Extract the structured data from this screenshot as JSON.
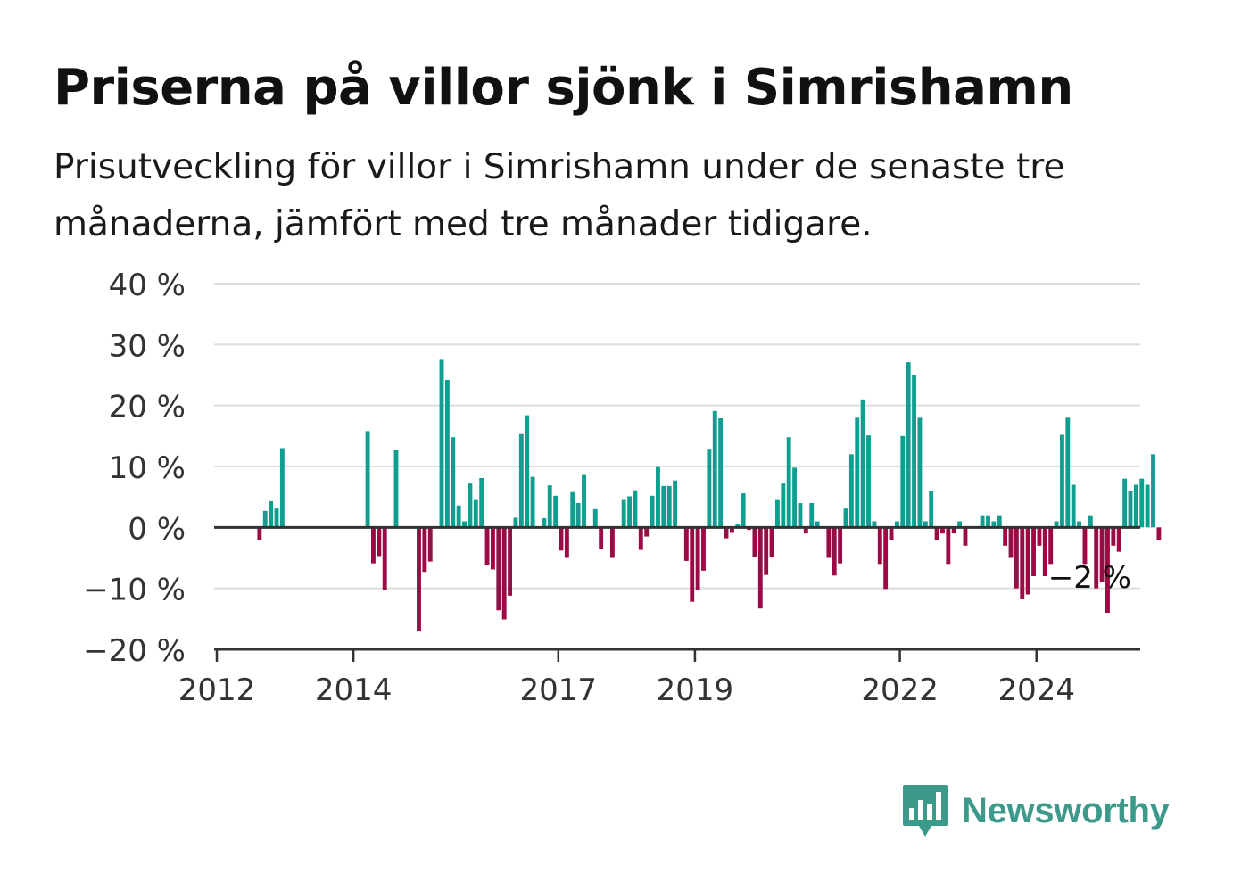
{
  "title": "Priserna på villor sjönk i Simrishamn",
  "subtitle": "Prisutveckling för villor i Simrishamn under de senaste tre månaderna, jämfört med tre månader tidigare.",
  "brand": {
    "name": "Newsworthy",
    "icon": "newsworthy-bar-chart-logo-icon"
  },
  "colors": {
    "positive": "#0f9e90",
    "negative": "#9c0a45",
    "grid": "#dddddd",
    "axis": "#333333",
    "brand": "#3d9a8b"
  },
  "chart_data": {
    "type": "bar",
    "x_unit": "month",
    "x_start": "2012-01",
    "ylim": [
      -20,
      40
    ],
    "y_ticks": [
      -20,
      -10,
      0,
      10,
      20,
      30,
      40
    ],
    "y_tick_labels": [
      "−20 %",
      "−10 %",
      "0 %",
      "10 %",
      "20 %",
      "30 %",
      "40 %"
    ],
    "x_ticks": [
      "2012",
      "2014",
      "2017",
      "2019",
      "2022",
      "2024"
    ],
    "grid": true,
    "last_value_label": "−2 %",
    "values": [
      null,
      null,
      null,
      null,
      null,
      null,
      null,
      -2,
      2.7,
      4.3,
      3.1,
      13,
      null,
      null,
      null,
      null,
      null,
      null,
      null,
      null,
      null,
      null,
      null,
      null,
      null,
      null,
      15.8,
      -5.9,
      -4.7,
      -10.2,
      null,
      12.7,
      null,
      null,
      null,
      -17,
      -7.3,
      -5.6,
      null,
      27.5,
      24.2,
      14.8,
      3.6,
      1,
      7.2,
      4.5,
      8.1,
      -6.2,
      -6.9,
      -13.6,
      -15.1,
      -11.2,
      1.6,
      15.3,
      18.4,
      8.3,
      null,
      1.5,
      6.9,
      5.2,
      -3.8,
      -5,
      5.8,
      4,
      8.6,
      null,
      3,
      -3.5,
      null,
      -5,
      null,
      4.5,
      5.1,
      6.1,
      -3.7,
      -1.5,
      5.2,
      9.9,
      6.8,
      6.8,
      7.7,
      null,
      -5.5,
      -12.2,
      -10.2,
      -7.1,
      12.9,
      19.1,
      17.9,
      -1.8,
      -0.9,
      0.5,
      5.6,
      -0.4,
      -4.9,
      -13.3,
      -7.8,
      -4.8,
      4.5,
      7.2,
      14.8,
      9.8,
      4,
      -1,
      4,
      1,
      null,
      -5,
      -7.9,
      -5.9,
      3.1,
      12,
      18,
      21,
      15.1,
      1,
      -6,
      -10.1,
      -2,
      1,
      15,
      27.1,
      25,
      18,
      1,
      6,
      -2,
      -1,
      -6,
      -1,
      1,
      -3,
      null,
      null,
      2,
      2,
      1,
      2,
      -3,
      -5,
      -10,
      -11.8,
      -11,
      -8,
      -3,
      -8,
      -6,
      1,
      15.2,
      18,
      7,
      1,
      -6,
      2,
      -10,
      -9,
      -14,
      -3,
      -4,
      8,
      6,
      7,
      8,
      7,
      12,
      -2
    ]
  }
}
